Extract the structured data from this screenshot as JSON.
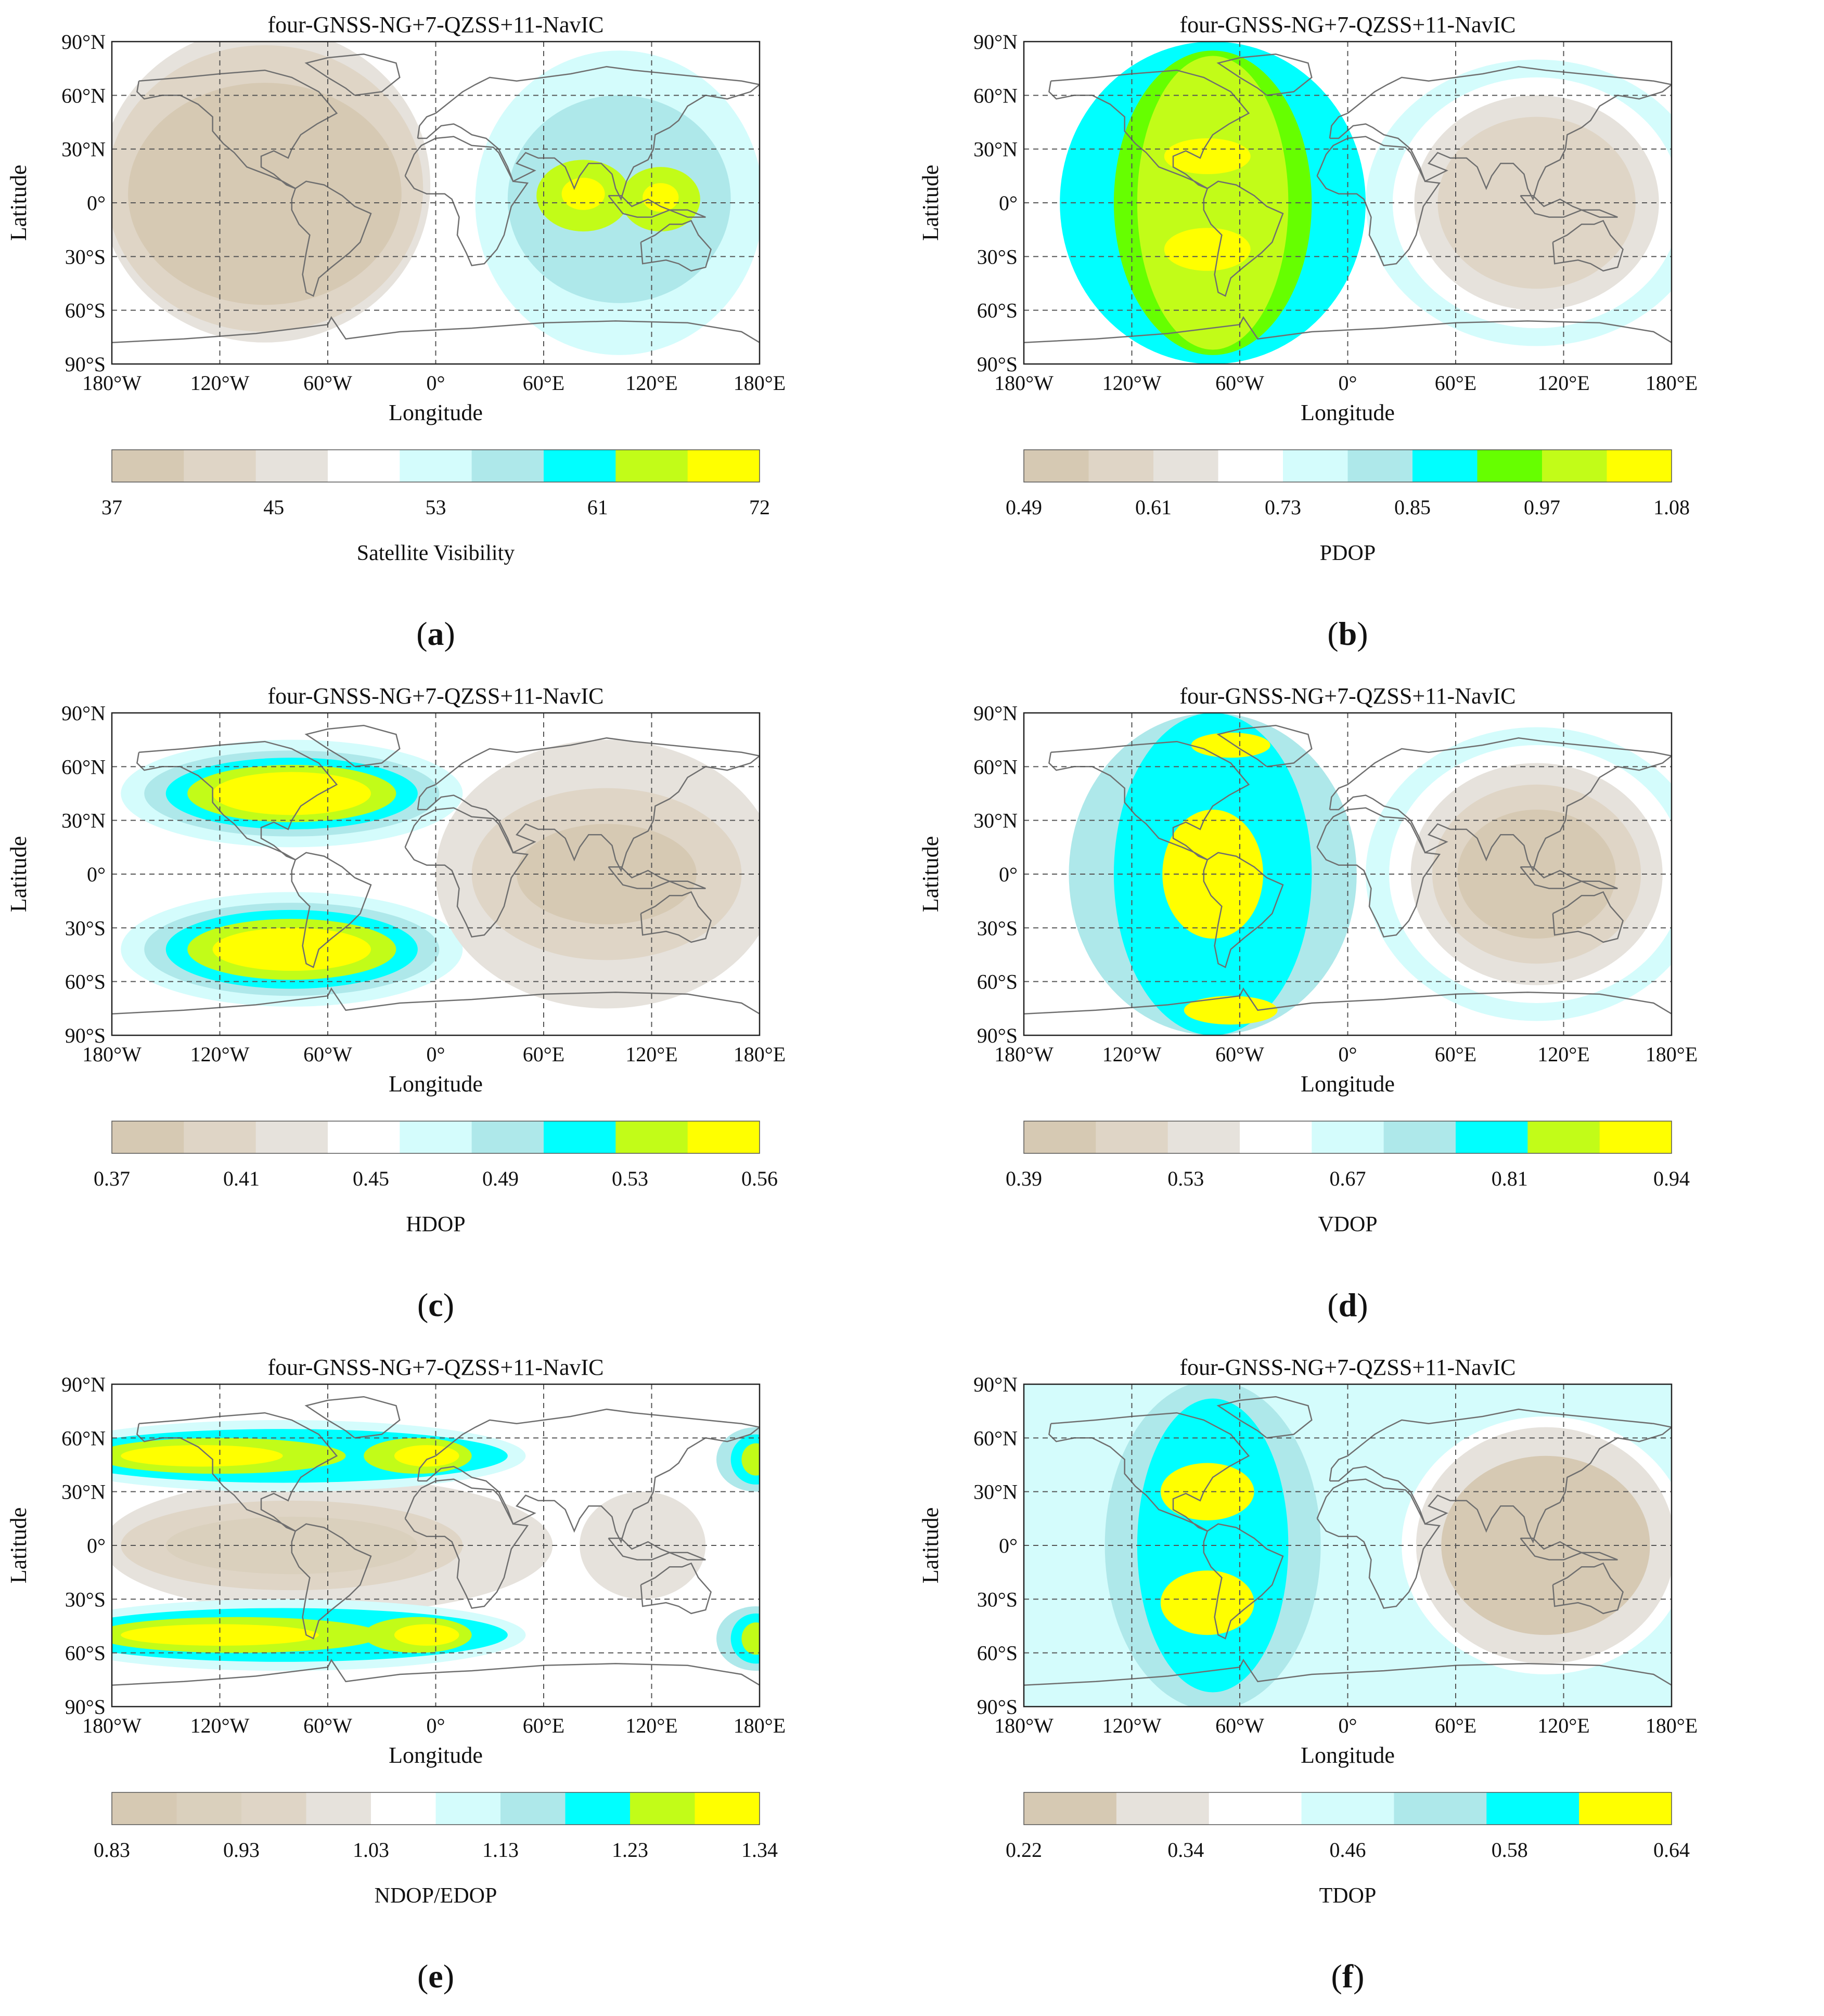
{
  "chart_data": [
    {
      "type": "heatmap",
      "panel_label": "(a)",
      "title": "four-GNSS-NG+7-QZSS+11-NavIC",
      "xlabel": "Longitude",
      "ylabel": "Latitude",
      "xlim": [
        -180,
        180
      ],
      "ylim": [
        -90,
        90
      ],
      "xticks": [
        "180°W",
        "120°W",
        "60°W",
        "0°",
        "60°E",
        "120°E",
        "180°E"
      ],
      "yticks": [
        "90°N",
        "60°N",
        "30°N",
        "0°",
        "30°S",
        "60°S",
        "90°S"
      ],
      "grid": true,
      "colorbar_label": "Satellite Visibility",
      "colorbar_ticks": [
        "37",
        "45",
        "53",
        "61",
        "72"
      ],
      "color_levels": [
        "#d6c9b3",
        "#dfd5c6",
        "#e6e2dc",
        "#ffffff",
        "#d4fcfc",
        "#aee8ea",
        "#00ffff",
        "#c2fc18",
        "#ffff00"
      ],
      "regions": [
        {
          "lon": -95,
          "lat": 10,
          "rx": 92,
          "ry": 88,
          "level": 2
        },
        {
          "lon": -95,
          "lat": 8,
          "rx": 88,
          "ry": 80,
          "level": 1
        },
        {
          "lon": -95,
          "lat": 5,
          "rx": 76,
          "ry": 62,
          "level": 0
        },
        {
          "lon": 102,
          "lat": 0,
          "rx": 80,
          "ry": 85,
          "level": 4
        },
        {
          "lon": 102,
          "lat": 2,
          "rx": 62,
          "ry": 58,
          "level": 5
        },
        {
          "lon": 82,
          "lat": 4,
          "rx": 26,
          "ry": 20,
          "level": 7
        },
        {
          "lon": 125,
          "lat": 2,
          "rx": 22,
          "ry": 18,
          "level": 7
        },
        {
          "lon": 82,
          "lat": 5,
          "rx": 12,
          "ry": 9,
          "level": 8
        },
        {
          "lon": 125,
          "lat": 3,
          "rx": 10,
          "ry": 8,
          "level": 8
        }
      ]
    },
    {
      "type": "heatmap",
      "panel_label": "(b)",
      "title": "four-GNSS-NG+7-QZSS+11-NavIC",
      "xlabel": "Longitude",
      "ylabel": "Latitude",
      "xlim": [
        -180,
        180
      ],
      "ylim": [
        -90,
        90
      ],
      "xticks": [
        "180°W",
        "120°W",
        "60°W",
        "0°",
        "60°E",
        "120°E",
        "180°E"
      ],
      "yticks": [
        "90°N",
        "60°N",
        "30°N",
        "0°",
        "30°S",
        "60°S",
        "90°S"
      ],
      "grid": true,
      "colorbar_label": "PDOP",
      "colorbar_ticks": [
        "0.49",
        "0.61",
        "0.73",
        "0.85",
        "0.97",
        "1.08"
      ],
      "color_levels": [
        "#d6c9b3",
        "#dfd5c6",
        "#e6e2dc",
        "#ffffff",
        "#d4fcfc",
        "#aee8ea",
        "#00ffff",
        "#66ff00",
        "#c2fc18",
        "#ffff00"
      ],
      "regions": [
        {
          "lon": -75,
          "lat": 0,
          "rx": 85,
          "ry": 90,
          "level": 6
        },
        {
          "lon": -75,
          "lat": 0,
          "rx": 55,
          "ry": 85,
          "level": 7
        },
        {
          "lon": -75,
          "lat": 0,
          "rx": 42,
          "ry": 82,
          "level": 8
        },
        {
          "lon": -78,
          "lat": 26,
          "rx": 24,
          "ry": 10,
          "level": 9
        },
        {
          "lon": -78,
          "lat": -26,
          "rx": 24,
          "ry": 12,
          "level": 9
        },
        {
          "lon": 105,
          "lat": 0,
          "rx": 95,
          "ry": 80,
          "level": 4
        },
        {
          "lon": 105,
          "lat": 0,
          "rx": 80,
          "ry": 70,
          "level": 3
        },
        {
          "lon": 105,
          "lat": 0,
          "rx": 68,
          "ry": 60,
          "level": 2
        },
        {
          "lon": 105,
          "lat": 0,
          "rx": 55,
          "ry": 48,
          "level": 1
        }
      ]
    },
    {
      "type": "heatmap",
      "panel_label": "(c)",
      "title": "four-GNSS-NG+7-QZSS+11-NavIC",
      "xlabel": "Longitude",
      "ylabel": "Latitude",
      "xlim": [
        -180,
        180
      ],
      "ylim": [
        -90,
        90
      ],
      "xticks": [
        "180°W",
        "120°W",
        "60°W",
        "0°",
        "60°E",
        "120°E",
        "180°E"
      ],
      "yticks": [
        "90°N",
        "60°N",
        "30°N",
        "0°",
        "30°S",
        "60°S",
        "90°S"
      ],
      "grid": true,
      "colorbar_label": "HDOP",
      "colorbar_ticks": [
        "0.37",
        "0.41",
        "0.45",
        "0.49",
        "0.53",
        "0.56"
      ],
      "color_levels": [
        "#d6c9b3",
        "#dfd5c6",
        "#e6e2dc",
        "#ffffff",
        "#d4fcfc",
        "#aee8ea",
        "#00ffff",
        "#c2fc18",
        "#ffff00"
      ],
      "regions": [
        {
          "lon": -80,
          "lat": 45,
          "rx": 95,
          "ry": 30,
          "level": 4
        },
        {
          "lon": -80,
          "lat": 45,
          "rx": 82,
          "ry": 24,
          "level": 5
        },
        {
          "lon": -80,
          "lat": 45,
          "rx": 70,
          "ry": 20,
          "level": 6
        },
        {
          "lon": -80,
          "lat": 45,
          "rx": 58,
          "ry": 16,
          "level": 7
        },
        {
          "lon": -80,
          "lat": 45,
          "rx": 44,
          "ry": 12,
          "level": 8
        },
        {
          "lon": -80,
          "lat": -42,
          "rx": 95,
          "ry": 32,
          "level": 4
        },
        {
          "lon": -80,
          "lat": -42,
          "rx": 82,
          "ry": 26,
          "level": 5
        },
        {
          "lon": -80,
          "lat": -42,
          "rx": 70,
          "ry": 22,
          "level": 6
        },
        {
          "lon": -80,
          "lat": -42,
          "rx": 58,
          "ry": 17,
          "level": 7
        },
        {
          "lon": -80,
          "lat": -42,
          "rx": 44,
          "ry": 12,
          "level": 8
        },
        {
          "lon": 95,
          "lat": 0,
          "rx": 95,
          "ry": 75,
          "level": 2
        },
        {
          "lon": 95,
          "lat": 0,
          "rx": 75,
          "ry": 48,
          "level": 1
        },
        {
          "lon": 95,
          "lat": 0,
          "rx": 50,
          "ry": 28,
          "level": 0
        }
      ]
    },
    {
      "type": "heatmap",
      "panel_label": "(d)",
      "title": "four-GNSS-NG+7-QZSS+11-NavIC",
      "xlabel": "Longitude",
      "ylabel": "Latitude",
      "xlim": [
        -180,
        180
      ],
      "ylim": [
        -90,
        90
      ],
      "xticks": [
        "180°W",
        "120°W",
        "60°W",
        "0°",
        "60°E",
        "120°E",
        "180°E"
      ],
      "yticks": [
        "90°N",
        "60°N",
        "30°N",
        "0°",
        "30°S",
        "60°S",
        "90°S"
      ],
      "grid": true,
      "colorbar_label": "VDOP",
      "colorbar_ticks": [
        "0.39",
        "0.53",
        "0.67",
        "0.81",
        "0.94"
      ],
      "color_levels": [
        "#d6c9b3",
        "#dfd5c6",
        "#e6e2dc",
        "#ffffff",
        "#d4fcfc",
        "#aee8ea",
        "#00ffff",
        "#c2fc18",
        "#ffff00"
      ],
      "regions": [
        {
          "lon": -75,
          "lat": 0,
          "rx": 80,
          "ry": 90,
          "level": 5
        },
        {
          "lon": -75,
          "lat": 0,
          "rx": 55,
          "ry": 90,
          "level": 6
        },
        {
          "lon": -75,
          "lat": 0,
          "rx": 28,
          "ry": 36,
          "level": 8
        },
        {
          "lon": -65,
          "lat": 72,
          "rx": 22,
          "ry": 7,
          "level": 8
        },
        {
          "lon": -65,
          "lat": -76,
          "rx": 26,
          "ry": 8,
          "level": 8
        },
        {
          "lon": 105,
          "lat": 0,
          "rx": 95,
          "ry": 82,
          "level": 4
        },
        {
          "lon": 105,
          "lat": 0,
          "rx": 82,
          "ry": 72,
          "level": 3
        },
        {
          "lon": 105,
          "lat": 0,
          "rx": 70,
          "ry": 62,
          "level": 2
        },
        {
          "lon": 105,
          "lat": 0,
          "rx": 58,
          "ry": 50,
          "level": 1
        },
        {
          "lon": 105,
          "lat": 0,
          "rx": 44,
          "ry": 36,
          "level": 0
        }
      ]
    },
    {
      "type": "heatmap",
      "panel_label": "(e)",
      "title": "four-GNSS-NG+7-QZSS+11-NavIC",
      "xlabel": "Longitude",
      "ylabel": "Latitude",
      "xlim": [
        -180,
        180
      ],
      "ylim": [
        -90,
        90
      ],
      "xticks": [
        "180°W",
        "120°W",
        "60°W",
        "0°",
        "60°E",
        "120°E",
        "180°E"
      ],
      "yticks": [
        "90°N",
        "60°N",
        "30°N",
        "0°",
        "30°S",
        "60°S",
        "90°S"
      ],
      "grid": true,
      "colorbar_label": "NDOP/EDOP",
      "colorbar_ticks": [
        "0.83",
        "0.93",
        "1.03",
        "1.13",
        "1.23",
        "1.34"
      ],
      "color_levels": [
        "#d6c9b3",
        "#dad0bd",
        "#dfd5c6",
        "#e6e2dc",
        "#ffffff",
        "#d4fcfc",
        "#aee8ea",
        "#00ffff",
        "#c2fc18",
        "#ffff00"
      ],
      "regions": [
        {
          "lon": -60,
          "lat": 0,
          "rx": 125,
          "ry": 38,
          "level": 3
        },
        {
          "lon": -80,
          "lat": 0,
          "rx": 95,
          "ry": 25,
          "level": 2
        },
        {
          "lon": -80,
          "lat": 0,
          "rx": 70,
          "ry": 16,
          "level": 1
        },
        {
          "lon": 115,
          "lat": 0,
          "rx": 35,
          "ry": 30,
          "level": 3
        },
        {
          "lon": -85,
          "lat": 50,
          "rx": 135,
          "ry": 20,
          "level": 5
        },
        {
          "lon": -85,
          "lat": 50,
          "rx": 125,
          "ry": 15,
          "level": 7
        },
        {
          "lon": -120,
          "lat": 50,
          "rx": 70,
          "ry": 10,
          "level": 8
        },
        {
          "lon": -10,
          "lat": 50,
          "rx": 30,
          "ry": 10,
          "level": 8
        },
        {
          "lon": -130,
          "lat": 50,
          "rx": 45,
          "ry": 6,
          "level": 9
        },
        {
          "lon": -5,
          "lat": 50,
          "rx": 18,
          "ry": 6,
          "level": 9
        },
        {
          "lon": 178,
          "lat": 48,
          "rx": 22,
          "ry": 18,
          "level": 6
        },
        {
          "lon": 178,
          "lat": 48,
          "rx": 14,
          "ry": 14,
          "level": 7
        },
        {
          "lon": 178,
          "lat": 48,
          "rx": 8,
          "ry": 9,
          "level": 8
        },
        {
          "lon": -85,
          "lat": -50,
          "rx": 135,
          "ry": 20,
          "level": 5
        },
        {
          "lon": -85,
          "lat": -50,
          "rx": 125,
          "ry": 15,
          "level": 7
        },
        {
          "lon": -110,
          "lat": -50,
          "rx": 80,
          "ry": 10,
          "level": 8
        },
        {
          "lon": -10,
          "lat": -50,
          "rx": 30,
          "ry": 10,
          "level": 8
        },
        {
          "lon": -120,
          "lat": -50,
          "rx": 55,
          "ry": 6,
          "level": 9
        },
        {
          "lon": -5,
          "lat": -50,
          "rx": 18,
          "ry": 6,
          "level": 9
        },
        {
          "lon": 178,
          "lat": -52,
          "rx": 22,
          "ry": 18,
          "level": 6
        },
        {
          "lon": 178,
          "lat": -52,
          "rx": 14,
          "ry": 14,
          "level": 7
        },
        {
          "lon": 178,
          "lat": -52,
          "rx": 8,
          "ry": 9,
          "level": 8
        }
      ]
    },
    {
      "type": "heatmap",
      "panel_label": "(f)",
      "title": "four-GNSS-NG+7-QZSS+11-NavIC",
      "xlabel": "Longitude",
      "ylabel": "Latitude",
      "xlim": [
        -180,
        180
      ],
      "ylim": [
        -90,
        90
      ],
      "xticks": [
        "180°W",
        "120°W",
        "60°W",
        "0°",
        "60°E",
        "120°E",
        "180°E"
      ],
      "yticks": [
        "90°N",
        "60°N",
        "30°N",
        "0°",
        "30°S",
        "60°S",
        "90°S"
      ],
      "grid": true,
      "colorbar_label": "TDOP",
      "colorbar_ticks": [
        "0.22",
        "0.34",
        "0.46",
        "0.58",
        "0.64"
      ],
      "color_levels": [
        "#d6c9b3",
        "#e6e2dc",
        "#ffffff",
        "#d4fcfc",
        "#aee8ea",
        "#00ffff",
        "#ffff00"
      ],
      "background_level": 3,
      "regions": [
        {
          "lon": -75,
          "lat": 0,
          "rx": 60,
          "ry": 92,
          "level": 4
        },
        {
          "lon": -75,
          "lat": 0,
          "rx": 42,
          "ry": 82,
          "level": 5
        },
        {
          "lon": -78,
          "lat": 30,
          "rx": 26,
          "ry": 16,
          "level": 6
        },
        {
          "lon": -78,
          "lat": -32,
          "rx": 26,
          "ry": 18,
          "level": 6
        },
        {
          "lon": 110,
          "lat": 0,
          "rx": 80,
          "ry": 72,
          "level": 2
        },
        {
          "lon": 110,
          "lat": 0,
          "rx": 72,
          "ry": 66,
          "level": 1
        },
        {
          "lon": 110,
          "lat": 0,
          "rx": 58,
          "ry": 50,
          "level": 0
        }
      ]
    }
  ]
}
